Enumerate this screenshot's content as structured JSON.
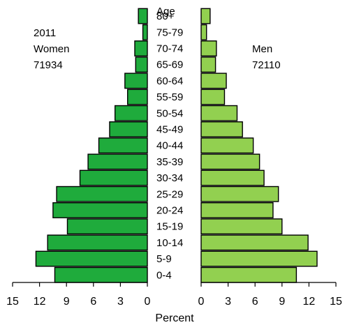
{
  "chart_data": {
    "type": "bar",
    "orientation": "horizontal",
    "subtype": "population-pyramid",
    "age_header": "Age",
    "categories": [
      "0-4",
      "5-9",
      "10-14",
      "15-19",
      "20-24",
      "25-29",
      "30-34",
      "35-39",
      "40-44",
      "45-49",
      "50-54",
      "55-59",
      "60-64",
      "65-69",
      "70-74",
      "75-79",
      "80+"
    ],
    "series": [
      {
        "name": "Women",
        "year": "2011",
        "total": "71934",
        "color": "#1fab3c",
        "values": [
          10.3,
          12.4,
          11.1,
          8.9,
          10.5,
          10.1,
          7.5,
          6.6,
          5.4,
          4.2,
          3.6,
          2.2,
          2.5,
          1.3,
          1.4,
          0.5,
          1.0
        ]
      },
      {
        "name": "Men",
        "total": "72110",
        "color": "#92d050",
        "values": [
          10.6,
          12.9,
          11.9,
          9.0,
          8.0,
          8.6,
          7.0,
          6.5,
          5.8,
          4.6,
          4.0,
          2.6,
          2.8,
          1.6,
          1.7,
          0.6,
          1.0
        ]
      }
    ],
    "xlabel": "Percent",
    "left_ticks": [
      "15",
      "12",
      "9",
      "6",
      "3",
      "0"
    ],
    "right_ticks": [
      "0",
      "3",
      "6",
      "9",
      "12",
      "15"
    ],
    "xlim": [
      0,
      15
    ]
  }
}
